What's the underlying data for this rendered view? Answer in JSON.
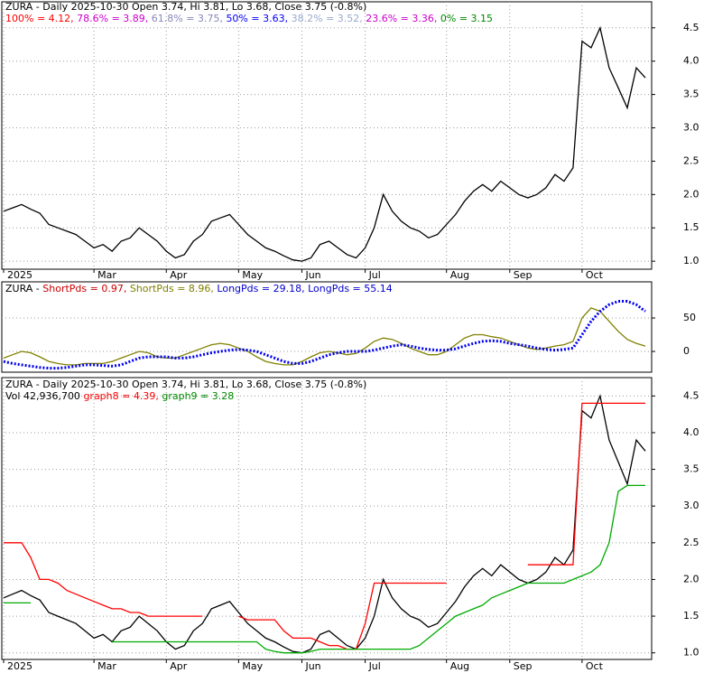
{
  "chart_data": [
    {
      "type": "line",
      "header": [
        [
          {
            "text": "ZURA - Daily 2025-10-30 Open 3.74, Hi 3.81, Lo 3.68, Close 3.75 (-0.8%)",
            "color": "#000000"
          }
        ],
        [
          {
            "text": "100% = 4.12, ",
            "color": "#ff0000"
          },
          {
            "text": "78.6% = 3.89, ",
            "color": "#cc00cc"
          },
          {
            "text": "61.8% = 3.75, ",
            "color": "#8888bb"
          },
          {
            "text": "50% = 3.63, ",
            "color": "#0000ff"
          },
          {
            "text": "38.2% = 3.52, ",
            "color": "#99aacc"
          },
          {
            "text": "23.6% = 3.36, ",
            "color": "#cc00cc"
          },
          {
            "text": "0% = 3.15",
            "color": "#008800"
          }
        ]
      ],
      "categories": [
        "2025",
        null,
        null,
        null,
        null,
        null,
        null,
        null,
        null,
        null,
        "Mar",
        null,
        null,
        null,
        null,
        null,
        null,
        null,
        "Apr",
        null,
        null,
        null,
        null,
        null,
        null,
        null,
        "May",
        null,
        null,
        null,
        null,
        null,
        null,
        "Jun",
        null,
        null,
        null,
        null,
        null,
        null,
        "Jul",
        null,
        null,
        null,
        null,
        null,
        null,
        null,
        null,
        "Aug",
        null,
        null,
        null,
        null,
        null,
        null,
        "Sep",
        null,
        null,
        null,
        null,
        null,
        null,
        null,
        "Oct",
        null,
        null,
        null,
        null,
        null,
        null,
        null
      ],
      "series": [
        {
          "color": "#000000",
          "values": [
            1.75,
            1.8,
            1.85,
            1.78,
            1.72,
            1.55,
            1.5,
            1.45,
            1.4,
            1.3,
            1.2,
            1.25,
            1.15,
            1.3,
            1.35,
            1.5,
            1.4,
            1.3,
            1.15,
            1.05,
            1.1,
            1.3,
            1.4,
            1.6,
            1.65,
            1.7,
            1.55,
            1.4,
            1.3,
            1.2,
            1.15,
            1.08,
            1.02,
            1.0,
            1.05,
            1.25,
            1.3,
            1.2,
            1.1,
            1.05,
            1.2,
            1.5,
            2.0,
            1.75,
            1.6,
            1.5,
            1.45,
            1.35,
            1.4,
            1.55,
            1.7,
            1.9,
            2.05,
            2.15,
            2.05,
            2.2,
            2.1,
            2.0,
            1.95,
            2.0,
            2.1,
            2.3,
            2.2,
            2.4,
            4.3,
            4.2,
            4.5,
            3.9,
            3.6,
            3.3,
            3.9,
            3.75
          ]
        }
      ],
      "ylim": [
        0.88,
        4.89
      ],
      "yticks": [
        {
          "value": 1.0,
          "label": "1.0"
        },
        1.5,
        {
          "value": 2.0,
          "label": "2.0"
        },
        2.5,
        {
          "value": 3.0,
          "label": "3.0"
        },
        3.5,
        {
          "value": 4.0,
          "label": "4.0"
        },
        4.5
      ],
      "grid": true
    },
    {
      "type": "line",
      "header": [
        [
          {
            "text": "ZURA - ",
            "color": "#000000"
          },
          {
            "text": "ShortPds = 0.97, ",
            "color": "#cc0000"
          },
          {
            "text": "ShortPds = 8.96, ",
            "color": "#808000"
          },
          {
            "text": "LongPds = 29.18, ",
            "color": "#0000cc"
          },
          {
            "text": "LongPds = 55.14",
            "color": "#0000cc"
          }
        ]
      ],
      "series": [
        {
          "name": "ShortPds",
          "color": "#808000",
          "values": [
            -10,
            -5,
            0,
            -2,
            -8,
            -15,
            -18,
            -20,
            -20,
            -18,
            -18,
            -18,
            -15,
            -10,
            -5,
            0,
            -2,
            -8,
            -10,
            -10,
            -5,
            0,
            5,
            10,
            12,
            10,
            5,
            0,
            -8,
            -15,
            -18,
            -20,
            -20,
            -15,
            -8,
            -2,
            0,
            -2,
            -5,
            -3,
            5,
            15,
            20,
            18,
            12,
            5,
            0,
            -5,
            -5,
            0,
            10,
            20,
            25,
            25,
            22,
            20,
            15,
            10,
            5,
            3,
            5,
            8,
            10,
            15,
            50,
            65,
            60,
            45,
            30,
            18,
            12,
            8
          ]
        },
        {
          "name": "LongPds",
          "color": "#0000ee",
          "values": [
            -15,
            -18,
            -20,
            -22,
            -24,
            -25,
            -25,
            -24,
            -22,
            -20,
            -20,
            -21,
            -22,
            -20,
            -15,
            -10,
            -8,
            -8,
            -8,
            -10,
            -10,
            -8,
            -5,
            -2,
            0,
            2,
            3,
            2,
            0,
            -5,
            -10,
            -15,
            -18,
            -18,
            -15,
            -10,
            -5,
            -2,
            0,
            0,
            0,
            2,
            5,
            8,
            10,
            8,
            5,
            3,
            2,
            2,
            4,
            8,
            12,
            15,
            16,
            15,
            12,
            10,
            8,
            5,
            3,
            2,
            3,
            5,
            25,
            45,
            60,
            70,
            75,
            75,
            70,
            60
          ]
        }
      ],
      "ylim": [
        -31,
        104
      ],
      "yticks": [
        0,
        50
      ],
      "grid": true
    },
    {
      "type": "line",
      "header": [
        [
          {
            "text": "ZURA - Daily 2025-10-30 Open 3.74, Hi 3.81, Lo 3.68, Close 3.75 (-0.8%)",
            "color": "#000000"
          }
        ],
        [
          {
            "text": "Vol 42,936,700 ",
            "color": "#000000"
          },
          {
            "text": "graph8 = 4.39, ",
            "color": "#ff0000"
          },
          {
            "text": "graph9 = 3.28",
            "color": "#008800"
          }
        ]
      ],
      "categories": [
        "2025",
        null,
        null,
        null,
        null,
        null,
        null,
        null,
        null,
        null,
        "Mar",
        null,
        null,
        null,
        null,
        null,
        null,
        null,
        "Apr",
        null,
        null,
        null,
        null,
        null,
        null,
        null,
        "May",
        null,
        null,
        null,
        null,
        null,
        null,
        "Jun",
        null,
        null,
        null,
        null,
        null,
        null,
        "Jul",
        null,
        null,
        null,
        null,
        null,
        null,
        null,
        null,
        "Aug",
        null,
        null,
        null,
        null,
        null,
        null,
        "Sep",
        null,
        null,
        null,
        null,
        null,
        null,
        null,
        "Oct",
        null,
        null,
        null,
        null,
        null,
        null,
        null
      ],
      "series": [
        {
          "color": "#000000",
          "values": [
            1.75,
            1.8,
            1.85,
            1.78,
            1.72,
            1.55,
            1.5,
            1.45,
            1.4,
            1.3,
            1.2,
            1.25,
            1.15,
            1.3,
            1.35,
            1.5,
            1.4,
            1.3,
            1.15,
            1.05,
            1.1,
            1.3,
            1.4,
            1.6,
            1.65,
            1.7,
            1.55,
            1.4,
            1.3,
            1.2,
            1.15,
            1.08,
            1.02,
            1.0,
            1.05,
            1.25,
            1.3,
            1.2,
            1.1,
            1.05,
            1.2,
            1.5,
            2.0,
            1.75,
            1.6,
            1.5,
            1.45,
            1.35,
            1.4,
            1.55,
            1.7,
            1.9,
            2.05,
            2.15,
            2.05,
            2.2,
            2.1,
            2.0,
            1.95,
            2.0,
            2.1,
            2.3,
            2.2,
            2.4,
            4.3,
            4.2,
            4.5,
            3.9,
            3.6,
            3.3,
            3.9,
            3.75
          ]
        },
        {
          "color": "#ff0000",
          "values": [
            2.5,
            2.5,
            2.5,
            2.3,
            2.0,
            2.0,
            1.95,
            1.85,
            1.8,
            1.75,
            1.7,
            1.65,
            1.6,
            1.6,
            1.55,
            1.55,
            1.5,
            1.5,
            1.5,
            1.5,
            1.5,
            1.5,
            1.5,
            null,
            null,
            null,
            1.5,
            1.45,
            1.45,
            1.45,
            1.45,
            1.3,
            1.2,
            1.2,
            1.2,
            1.15,
            1.1,
            1.1,
            1.05,
            1.05,
            1.4,
            1.95,
            1.95,
            1.95,
            1.95,
            1.95,
            1.95,
            1.95,
            1.95,
            1.95,
            null,
            null,
            null,
            null,
            null,
            null,
            null,
            null,
            2.2,
            2.2,
            2.2,
            2.2,
            2.2,
            2.2,
            4.4,
            4.4,
            4.4,
            4.4,
            4.4,
            4.4,
            4.4,
            4.4
          ]
        },
        {
          "color": "#00aa00",
          "values": [
            1.68,
            1.68,
            1.68,
            1.68,
            null,
            null,
            null,
            null,
            null,
            null,
            null,
            null,
            1.15,
            1.15,
            1.15,
            1.15,
            1.15,
            1.15,
            1.15,
            1.15,
            1.15,
            1.15,
            1.15,
            1.15,
            1.15,
            1.15,
            1.15,
            1.15,
            1.15,
            1.05,
            1.02,
            1.0,
            1.0,
            1.0,
            1.02,
            1.05,
            1.05,
            1.05,
            1.05,
            1.05,
            1.05,
            1.05,
            1.05,
            1.05,
            1.05,
            1.05,
            1.1,
            1.2,
            1.3,
            1.4,
            1.5,
            1.55,
            1.6,
            1.65,
            1.75,
            1.8,
            1.85,
            1.9,
            1.95,
            1.95,
            1.95,
            1.95,
            1.95,
            2.0,
            2.05,
            2.1,
            2.2,
            2.5,
            3.2,
            3.28,
            3.28,
            3.28
          ]
        }
      ],
      "ylim": [
        0.91,
        4.75
      ],
      "yticks": [
        {
          "value": 1.0,
          "label": "1.0"
        },
        1.5,
        {
          "value": 2.0,
          "label": "2.0"
        },
        2.5,
        {
          "value": 3.0,
          "label": "3.0"
        },
        3.5,
        {
          "value": 4.0,
          "label": "4.0"
        },
        4.5
      ],
      "grid": true
    }
  ]
}
